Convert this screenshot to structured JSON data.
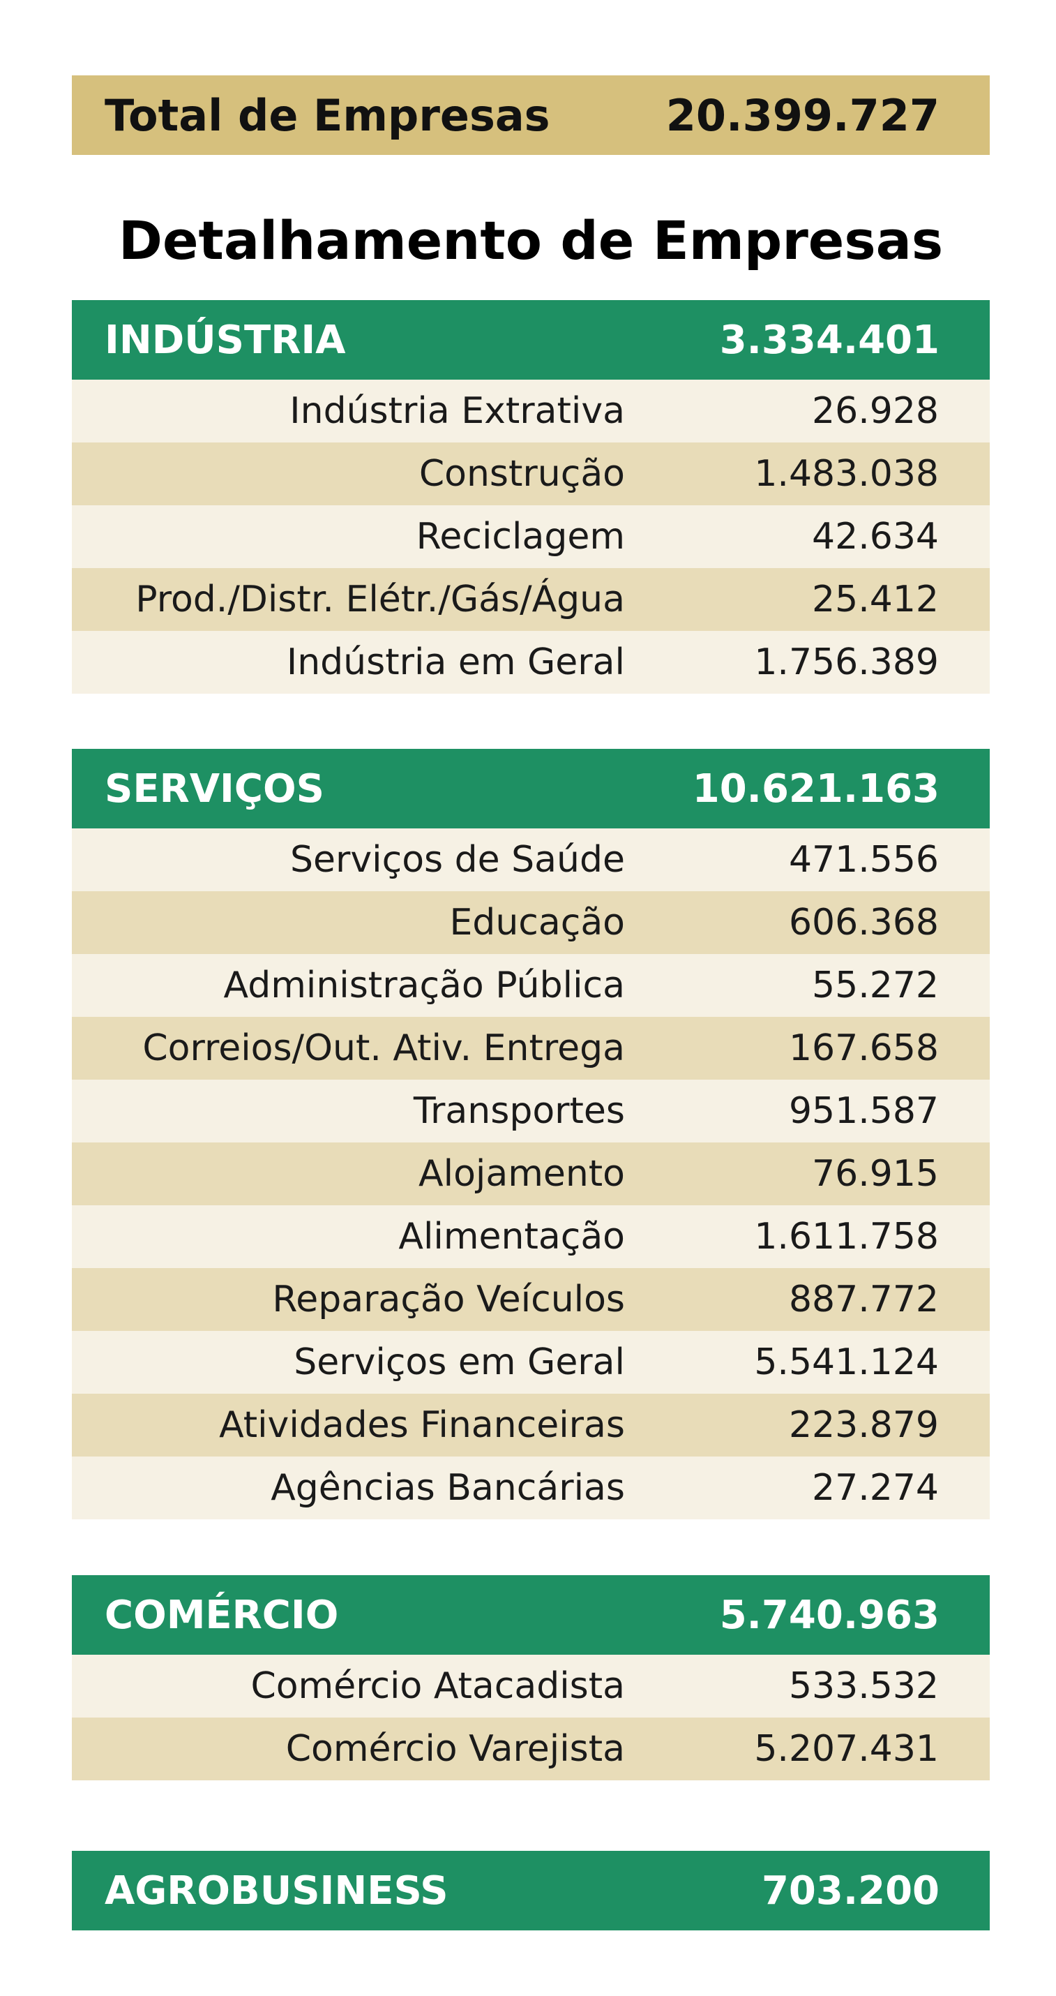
{
  "total": {
    "label": "Total de Empresas",
    "value": "20.399.727"
  },
  "title": "Detalhamento de Empresas",
  "colors": {
    "total_bar": "#d6c07d",
    "section_header": "#1e9063",
    "row_light": "#f6f1e4",
    "row_dark": "#e8dcb8"
  },
  "sections": [
    {
      "name": "INDÚSTRIA",
      "total": "3.334.401",
      "rows": [
        {
          "label": "Indústria Extrativa",
          "value": "26.928"
        },
        {
          "label": "Construção",
          "value": "1.483.038"
        },
        {
          "label": "Reciclagem",
          "value": "42.634"
        },
        {
          "label": "Prod./Distr. Elétr./Gás/Água",
          "value": "25.412"
        },
        {
          "label": "Indústria em Geral",
          "value": "1.756.389"
        }
      ]
    },
    {
      "name": "SERVIÇOS",
      "total": "10.621.163",
      "rows": [
        {
          "label": "Serviços de Saúde",
          "value": "471.556"
        },
        {
          "label": "Educação",
          "value": "606.368"
        },
        {
          "label": "Administração Pública",
          "value": "55.272"
        },
        {
          "label": "Correios/Out. Ativ. Entrega",
          "value": "167.658"
        },
        {
          "label": "Transportes",
          "value": "951.587"
        },
        {
          "label": "Alojamento",
          "value": "76.915"
        },
        {
          "label": "Alimentação",
          "value": "1.611.758"
        },
        {
          "label": "Reparação Veículos",
          "value": "887.772"
        },
        {
          "label": "Serviços em Geral",
          "value": "5.541.124"
        },
        {
          "label": "Atividades Financeiras",
          "value": "223.879"
        },
        {
          "label": "Agências Bancárias",
          "value": "27.274"
        }
      ]
    },
    {
      "name": "COMÉRCIO",
      "total": "5.740.963",
      "rows": [
        {
          "label": "Comércio Atacadista",
          "value": "533.532"
        },
        {
          "label": "Comércio Varejista",
          "value": "5.207.431"
        }
      ]
    },
    {
      "name": "AGROBUSINESS",
      "total": "703.200",
      "rows": []
    }
  ]
}
